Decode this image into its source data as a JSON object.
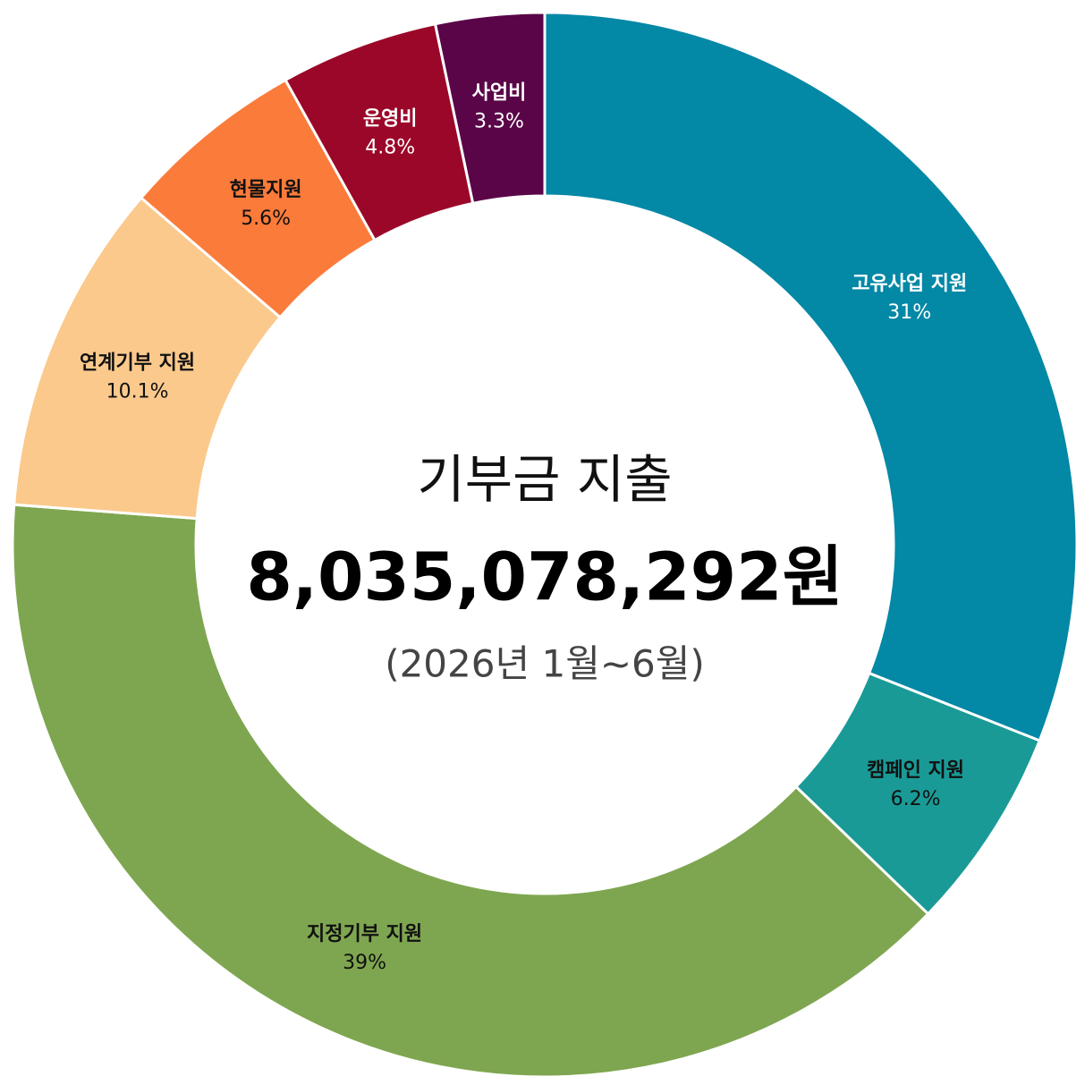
{
  "chart_data": {
    "type": "donut",
    "title": "기부금 지출",
    "total": "8,035,078,292원",
    "subtitle": "(2026년 1월~6월)",
    "categories": [
      "고유사업 지원",
      "캠페인 지원",
      "지정기부 지원",
      "연계기부 지원",
      "현물지원",
      "운영비",
      "사업비"
    ],
    "values": [
      31,
      6.2,
      39,
      10.1,
      5.6,
      4.8,
      3.3
    ],
    "value_labels": [
      "31%",
      "6.2%",
      "39%",
      "10.1%",
      "5.6%",
      "4.8%",
      "3.3%"
    ],
    "colors": [
      "#0388a6",
      "#1a9a96",
      "#7ea650",
      "#fbc98c",
      "#fb7b3b",
      "#9b0729",
      "#5a0548"
    ]
  }
}
